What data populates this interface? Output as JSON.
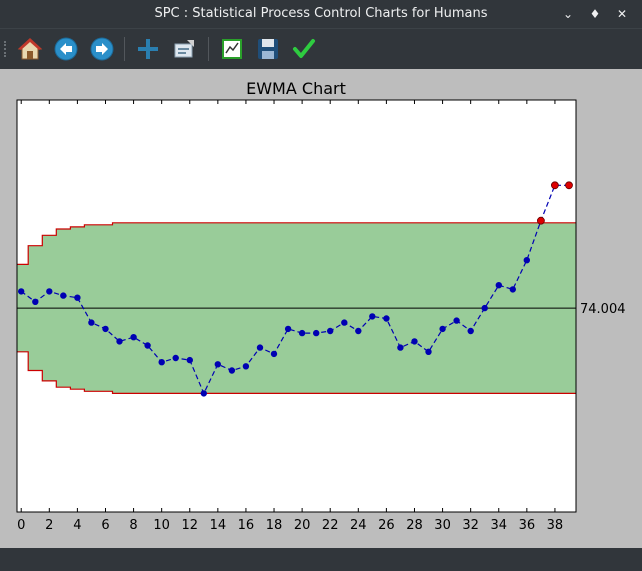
{
  "window": {
    "title": "SPC : Statistical Process Control Charts for Humans"
  },
  "toolbar": {
    "buttons": [
      {
        "name": "home-button",
        "icon": "home-icon"
      },
      {
        "name": "back-button",
        "icon": "arrow-left-icon"
      },
      {
        "name": "forward-button",
        "icon": "arrow-right-icon"
      },
      {
        "name": "pan-button",
        "icon": "move-icon"
      },
      {
        "name": "zoom-button",
        "icon": "zoom-rect-icon"
      },
      {
        "name": "configure-subplots-button",
        "icon": "subplots-icon"
      },
      {
        "name": "save-button",
        "icon": "floppy-icon"
      },
      {
        "name": "edit-button",
        "icon": "checkmark-icon"
      }
    ]
  },
  "chart_data": {
    "type": "line",
    "title": "EWMA Chart",
    "center_line": 74.004,
    "center_label": "74.004",
    "x_ticks": [
      0,
      2,
      4,
      6,
      8,
      10,
      12,
      14,
      16,
      18,
      20,
      22,
      24,
      26,
      28,
      30,
      32,
      34,
      36,
      38
    ],
    "xlim": [
      -0.3,
      39.5
    ],
    "ylim": [
      73.9942,
      74.014
    ],
    "ucl": [
      74.0061,
      74.007,
      74.0075,
      74.0078,
      74.0079,
      74.008,
      74.008,
      74.0081,
      74.0081,
      74.0081,
      74.0081,
      74.0081,
      74.0081,
      74.0081,
      74.0081,
      74.0081,
      74.0081,
      74.0081,
      74.0081,
      74.0081,
      74.0081,
      74.0081,
      74.0081,
      74.0081,
      74.0081,
      74.0081,
      74.0081,
      74.0081,
      74.0081,
      74.0081,
      74.0081,
      74.0081,
      74.0081,
      74.0081,
      74.0081,
      74.0081,
      74.0081,
      74.0081,
      74.0081,
      74.0081
    ],
    "lcl": [
      74.0019,
      74.001,
      74.0005,
      74.0002,
      74.0001,
      74.0,
      74.0,
      73.9999,
      73.9999,
      73.9999,
      73.9999,
      73.9999,
      73.9999,
      73.9999,
      73.9999,
      73.9999,
      73.9999,
      73.9999,
      73.9999,
      73.9999,
      73.9999,
      73.9999,
      73.9999,
      73.9999,
      73.9999,
      73.9999,
      73.9999,
      73.9999,
      73.9999,
      73.9999,
      73.9999,
      73.9999,
      73.9999,
      73.9999,
      73.9999,
      73.9999,
      73.9999,
      73.9999,
      73.9999,
      73.9999
    ],
    "series": [
      {
        "values": [
          74.0048,
          74.0043,
          74.0048,
          74.0046,
          74.0045,
          74.0033,
          74.003,
          74.0024,
          74.0026,
          74.0022,
          74.0014,
          74.0016,
          74.0015,
          73.9999,
          74.0013,
          74.001,
          74.0012,
          74.0021,
          74.0018,
          74.003,
          74.0028,
          74.0028,
          74.0029,
          74.0033,
          74.0029,
          74.0036,
          74.0035,
          74.0021,
          74.0024,
          74.0019,
          74.003,
          74.0034,
          74.0029,
          74.004,
          74.0051,
          74.0049,
          74.0063,
          74.0082,
          74.0099,
          74.0099
        ]
      }
    ],
    "out_of_control_indices": [
      37,
      38,
      39
    ],
    "colors": {
      "band": "#99cc99",
      "limit": "#cc0000",
      "series": "#0000b3",
      "ooc": "#dd0000",
      "center": "#000000"
    }
  }
}
